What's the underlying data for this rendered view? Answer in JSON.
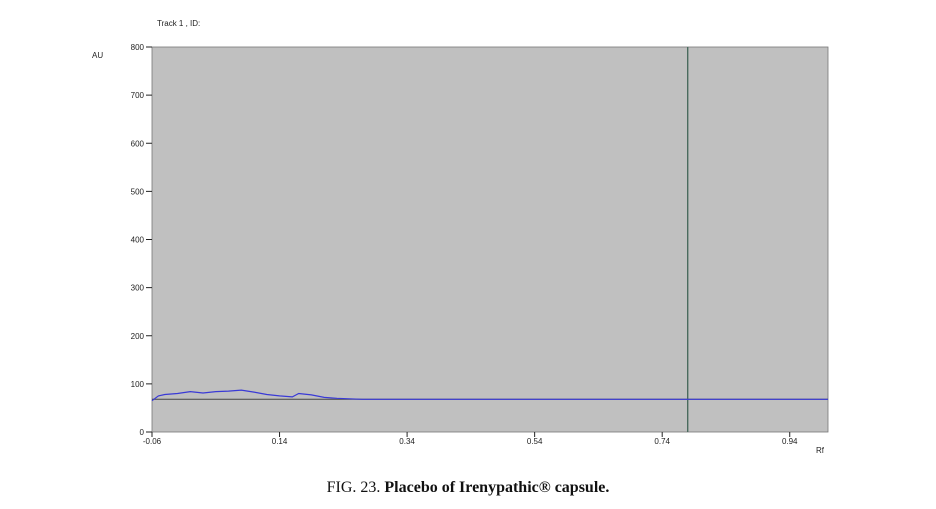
{
  "chart_data": {
    "type": "line",
    "title": "Track  1 , ID:",
    "xlabel": "Rf",
    "ylabel": "AU",
    "xlim": [
      -0.06,
      1.0
    ],
    "ylim": [
      0,
      800
    ],
    "x_ticks": [
      -0.06,
      0.14,
      0.34,
      0.54,
      0.74,
      0.94
    ],
    "x_tick_labels": [
      "-0.06",
      "0.14",
      "0.34",
      "0.54",
      "0.74",
      "0.94"
    ],
    "y_ticks": [
      0,
      100,
      200,
      300,
      400,
      500,
      600,
      700,
      800
    ],
    "y_tick_labels": [
      "0",
      "100",
      "200",
      "300",
      "400",
      "500",
      "600",
      "700",
      "800"
    ],
    "baseline": 68,
    "marker_x": 0.78,
    "series": [
      {
        "color": "#3a3ad6",
        "x": [
          -0.06,
          -0.05,
          -0.04,
          -0.02,
          0.0,
          0.02,
          0.04,
          0.06,
          0.08,
          0.1,
          0.12,
          0.14,
          0.16,
          0.17,
          0.19,
          0.21,
          0.23,
          0.25,
          0.27,
          0.3,
          0.34,
          0.4,
          0.5,
          0.6,
          0.7,
          0.78,
          0.8,
          0.9,
          1.0
        ],
        "values": [
          65,
          75,
          78,
          80,
          84,
          81,
          84,
          85,
          87,
          83,
          78,
          75,
          73,
          80,
          77,
          72,
          70,
          69,
          68,
          68,
          68,
          68,
          68,
          68,
          68,
          68,
          68,
          68,
          68
        ]
      }
    ],
    "plot_background": "#c0c0c0",
    "grid": false,
    "legend": "none"
  },
  "caption": {
    "prefix": "FIG. 23.",
    "bold_text": "Placebo of Irenypathic® capsule."
  }
}
